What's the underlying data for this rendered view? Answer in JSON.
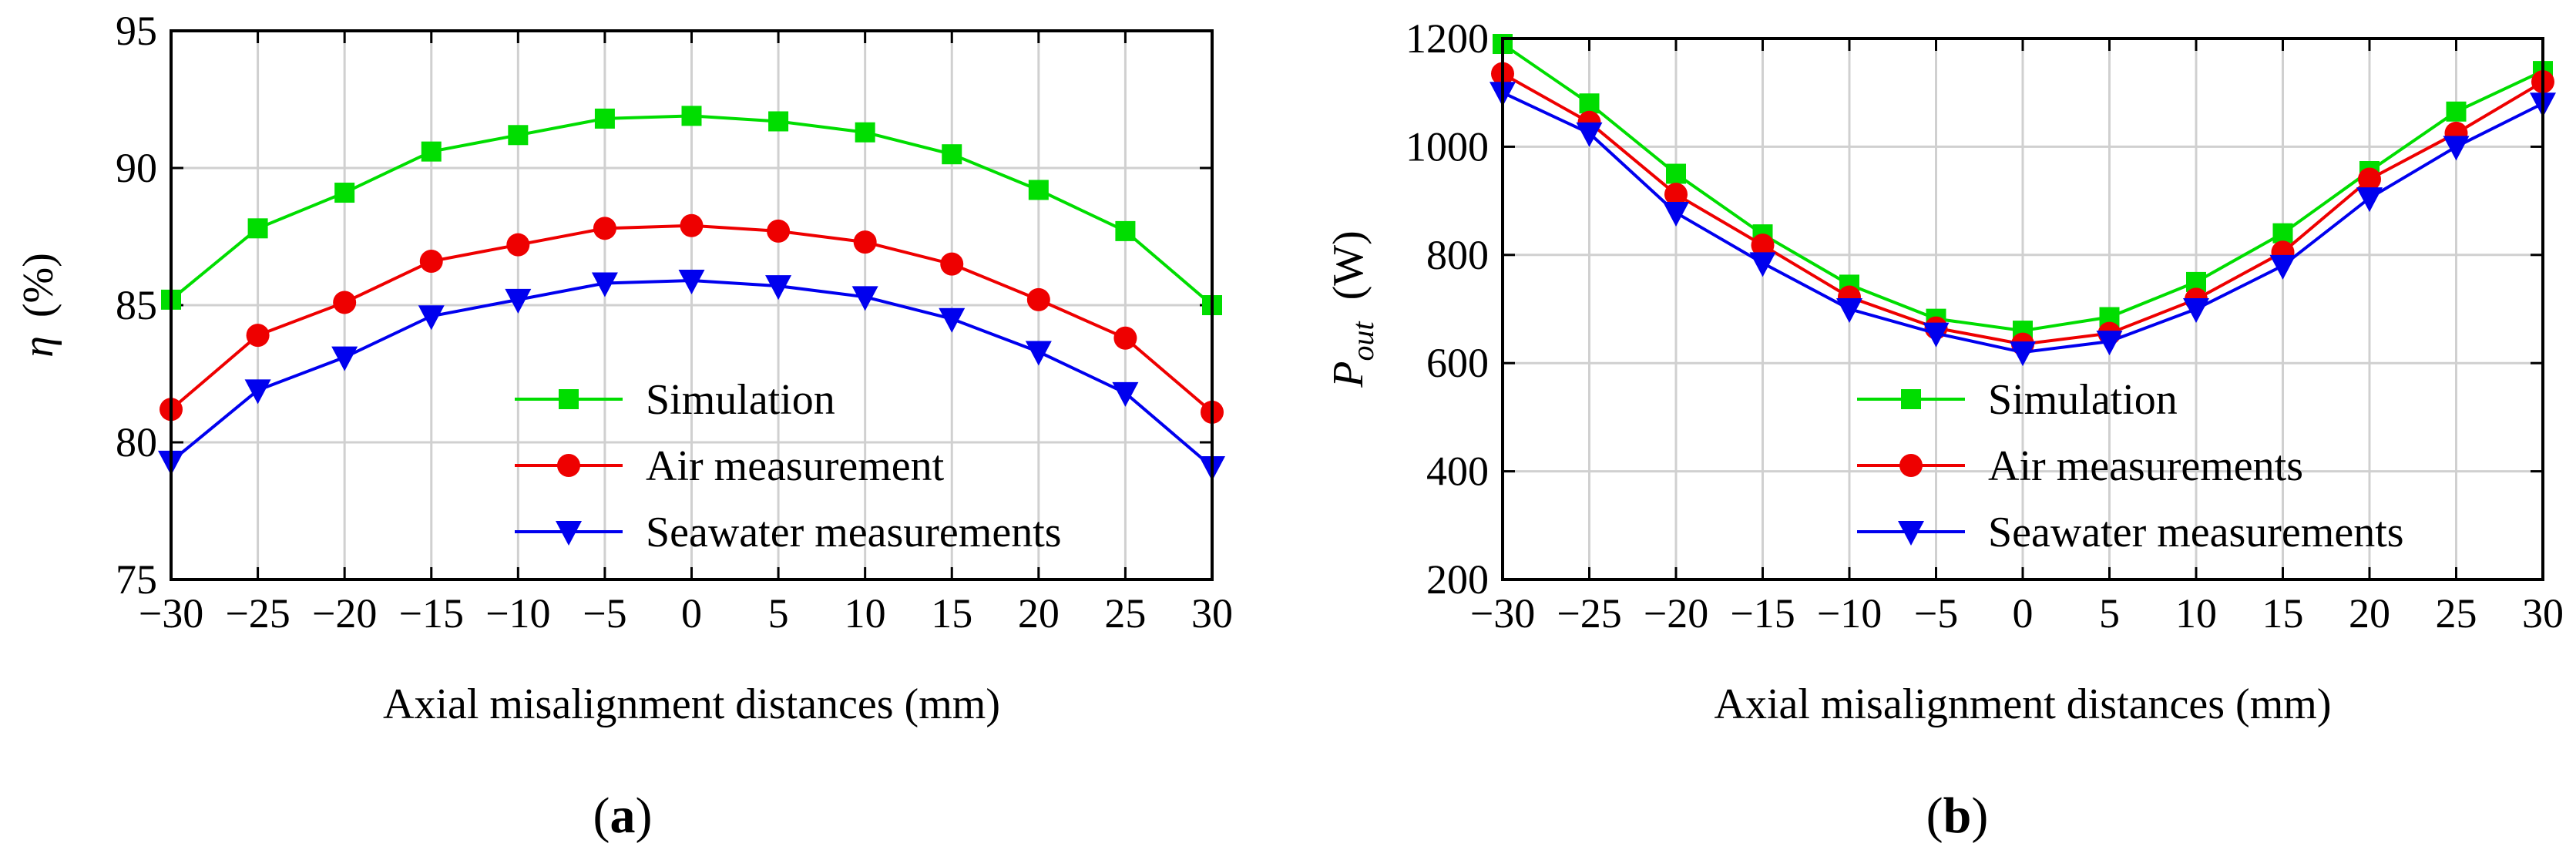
{
  "chart_data": [
    {
      "type": "line",
      "panel_label": "a",
      "categories": [
        "−30",
        "−25",
        "−20",
        "−15",
        "−10",
        "−5",
        "0",
        "5",
        "10",
        "15",
        "20",
        "25",
        "30"
      ],
      "x": [
        -30,
        -25,
        -20,
        -15,
        -10,
        -5,
        0,
        5,
        10,
        15,
        20,
        25,
        30
      ],
      "xlabel": "Axial misalignment distances (mm)",
      "ylabel_symbol": "η",
      "ylabel_unit": "(%)",
      "xlim": [
        -30,
        30
      ],
      "ylim": [
        75,
        95
      ],
      "yticks": [
        75,
        80,
        85,
        90,
        95
      ],
      "grid": true,
      "legend_position": "bottom-right",
      "series": [
        {
          "name": "Simulation",
          "color": "#00dd00",
          "marker": "square",
          "values": [
            85.2,
            87.8,
            89.1,
            90.6,
            91.2,
            91.8,
            91.9,
            91.7,
            91.3,
            90.5,
            89.2,
            87.7,
            85.0
          ]
        },
        {
          "name": "Air measurement",
          "color": "#ee0000",
          "marker": "circle",
          "values": [
            81.2,
            83.9,
            85.1,
            86.6,
            87.2,
            87.8,
            87.9,
            87.7,
            87.3,
            86.5,
            85.2,
            83.8,
            81.1
          ]
        },
        {
          "name": "Seawater measurements",
          "color": "#0000ee",
          "marker": "triangle-down",
          "values": [
            79.3,
            81.9,
            83.1,
            84.6,
            85.2,
            85.8,
            85.9,
            85.7,
            85.3,
            84.5,
            83.3,
            81.8,
            79.1
          ]
        }
      ]
    },
    {
      "type": "line",
      "panel_label": "b",
      "categories": [
        "−30",
        "−25",
        "−20",
        "−15",
        "−10",
        "−5",
        "0",
        "5",
        "10",
        "15",
        "20",
        "25",
        "30"
      ],
      "x": [
        -30,
        -25,
        -20,
        -15,
        -10,
        -5,
        0,
        5,
        10,
        15,
        20,
        25,
        30
      ],
      "xlabel": "Axial misalignment distances (mm)",
      "ylabel_symbol": "P",
      "ylabel_subscript": "out",
      "ylabel_unit": "(W)",
      "xlim": [
        -30,
        30
      ],
      "ylim": [
        200,
        1200
      ],
      "yticks": [
        200,
        400,
        600,
        800,
        1000,
        1200
      ],
      "grid": true,
      "legend_position": "bottom-right",
      "series": [
        {
          "name": "Simulation",
          "color": "#00dd00",
          "marker": "square",
          "values": [
            1190,
            1080,
            950,
            838,
            745,
            682,
            660,
            685,
            750,
            840,
            955,
            1065,
            1140
          ]
        },
        {
          "name": "Air measurements",
          "color": "#ee0000",
          "marker": "circle",
          "values": [
            1135,
            1045,
            912,
            818,
            722,
            665,
            635,
            655,
            718,
            805,
            940,
            1025,
            1120
          ]
        },
        {
          "name": "Seawater measurements",
          "color": "#0000ee",
          "marker": "triangle-down",
          "values": [
            1100,
            1025,
            878,
            785,
            700,
            655,
            620,
            640,
            700,
            780,
            905,
            1000,
            1080
          ]
        }
      ]
    }
  ]
}
